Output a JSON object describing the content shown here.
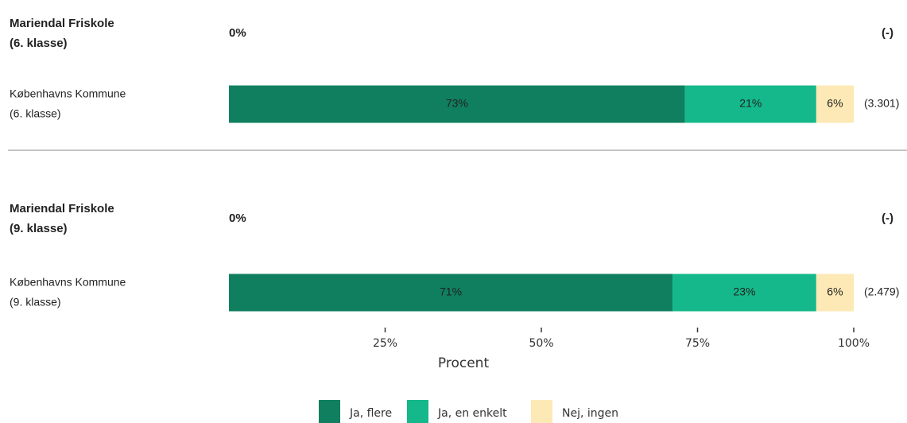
{
  "chart_data": {
    "type": "bar",
    "orientation": "horizontal",
    "stacked": true,
    "categories": [
      [
        "Mariendal Friskole",
        "(6. klasse)"
      ],
      [
        "Københavns Kommune",
        "(6. klasse)"
      ],
      [
        "Mariendal Friskole",
        "(9. klasse)"
      ],
      [
        "Københavns Kommune",
        "(9. klasse)"
      ]
    ],
    "series": [
      {
        "name": "Ja, flere",
        "color": "#0f7f5f",
        "values": [
          0,
          73,
          0,
          71
        ],
        "value_labels": [
          "0%",
          "73%",
          "0%",
          "71%"
        ]
      },
      {
        "name": "Ja, en enkelt",
        "color": "#14b88a",
        "values": [
          0,
          21,
          0,
          23
        ],
        "value_labels": [
          null,
          "21%",
          null,
          "23%"
        ]
      },
      {
        "name": "Nej, ingen",
        "color": "#fde9b5",
        "values": [
          0,
          6,
          0,
          6
        ],
        "value_labels": [
          null,
          "6%",
          null,
          "6%"
        ]
      }
    ],
    "counts": [
      "(-)",
      "(3.301)",
      "(-)",
      "(2.479)"
    ],
    "xlim": [
      0,
      100
    ],
    "xticks": [
      {
        "value": 25,
        "label": "25%"
      },
      {
        "value": 50,
        "label": "50%"
      },
      {
        "value": 75,
        "label": "75%"
      },
      {
        "value": 100,
        "label": "100%"
      }
    ],
    "x_label": "Procent",
    "legend": "bottom"
  }
}
